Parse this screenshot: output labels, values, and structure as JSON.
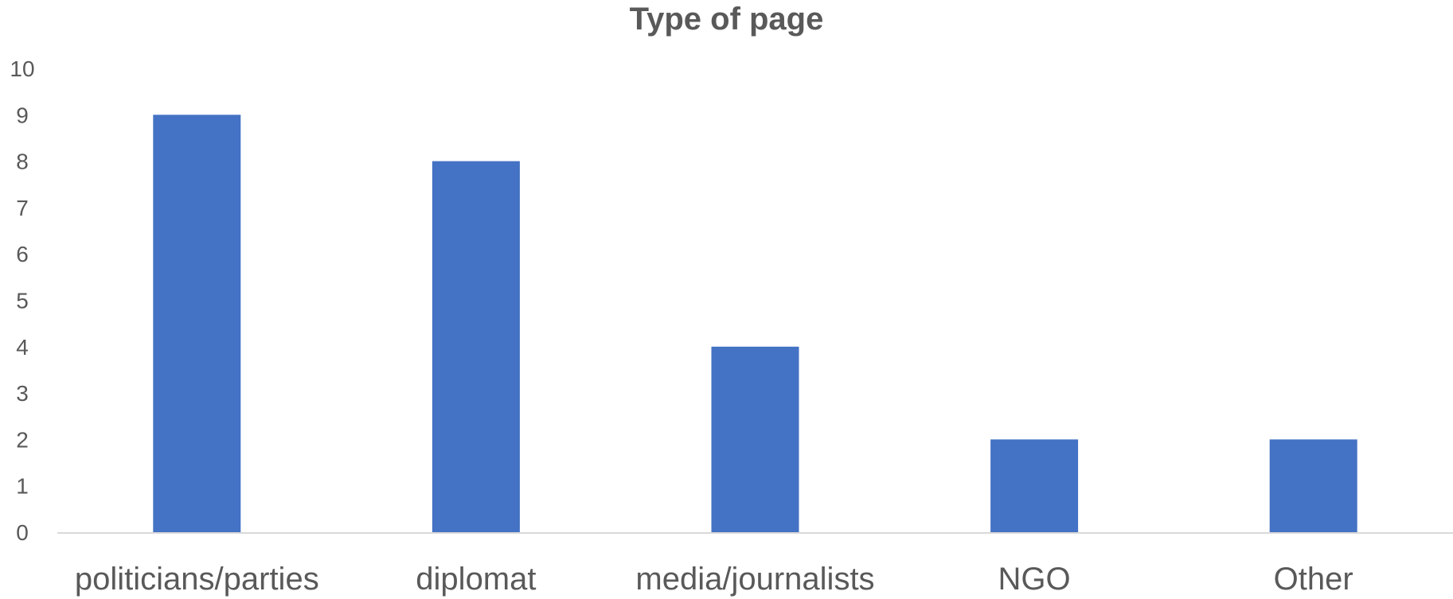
{
  "chart_data": {
    "type": "bar",
    "title": "Type of page",
    "categories": [
      "politicians/parties",
      "diplomat",
      "media/journalists",
      "NGO",
      "Other"
    ],
    "values": [
      9,
      8,
      4,
      2,
      2
    ],
    "ylim": [
      0,
      10
    ],
    "yticks": [
      "0",
      "1",
      "2",
      "3",
      "4",
      "5",
      "6",
      "7",
      "8",
      "9",
      "10"
    ],
    "xlabel": "",
    "ylabel": "",
    "grid": false,
    "legend": "none",
    "colors": {
      "bar": "#4472C4",
      "axis": "#D9D9D9",
      "text": "#595959"
    }
  }
}
